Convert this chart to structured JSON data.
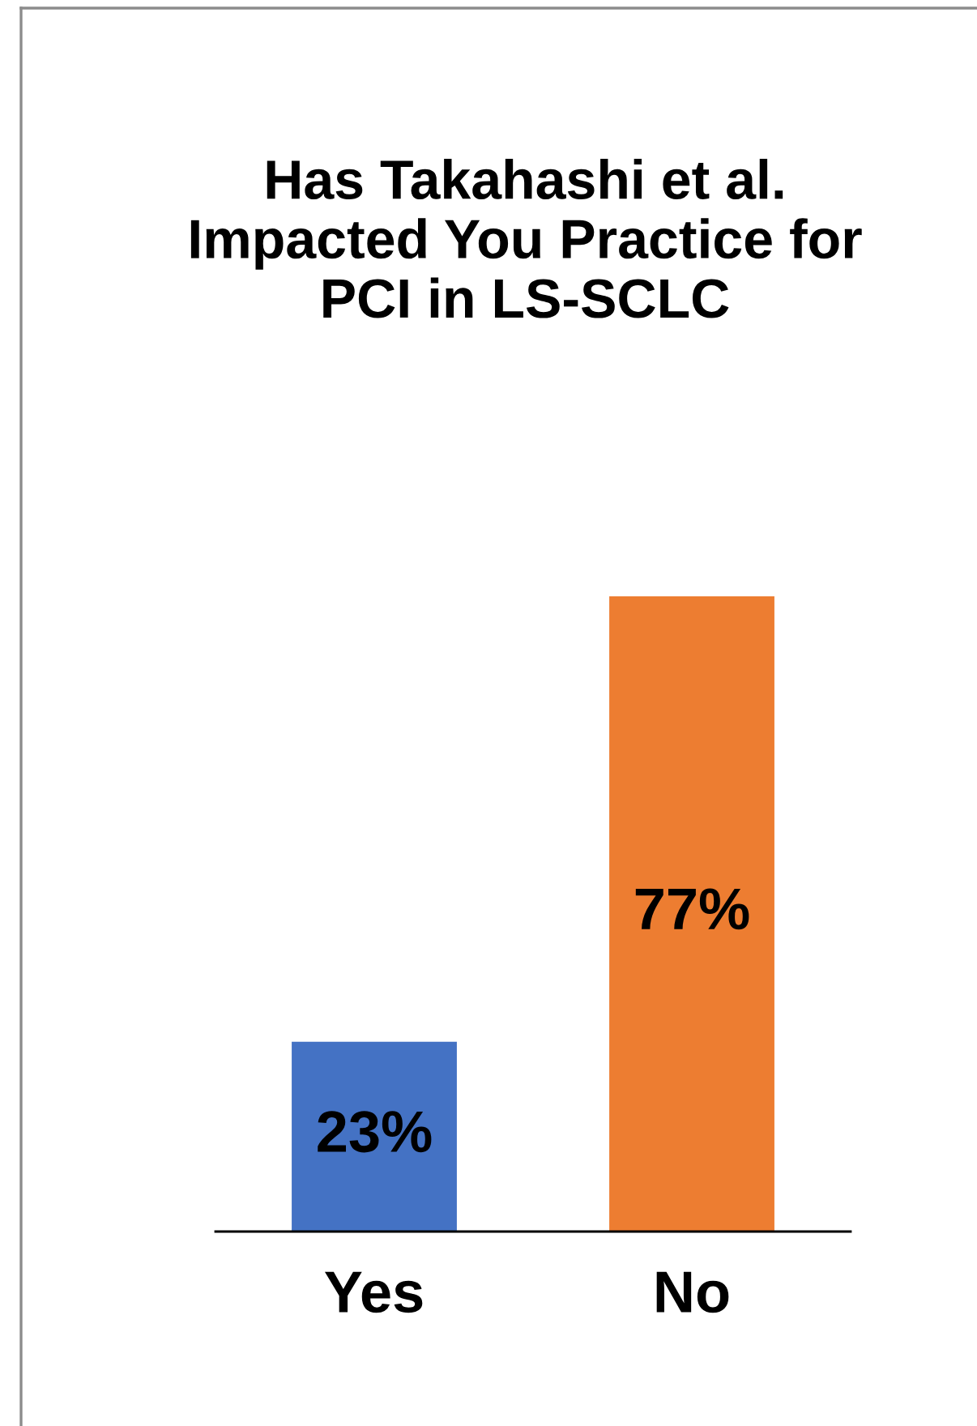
{
  "chart_data": {
    "type": "bar",
    "title": "Has Takahashi et al.\nImpacted You Practice for\nPCI in LS-SCLC",
    "categories": [
      "Yes",
      "No"
    ],
    "values": [
      23,
      77
    ],
    "colors": [
      "#4472c4",
      "#ed7d31"
    ],
    "value_labels": [
      "23%",
      "77%"
    ]
  }
}
